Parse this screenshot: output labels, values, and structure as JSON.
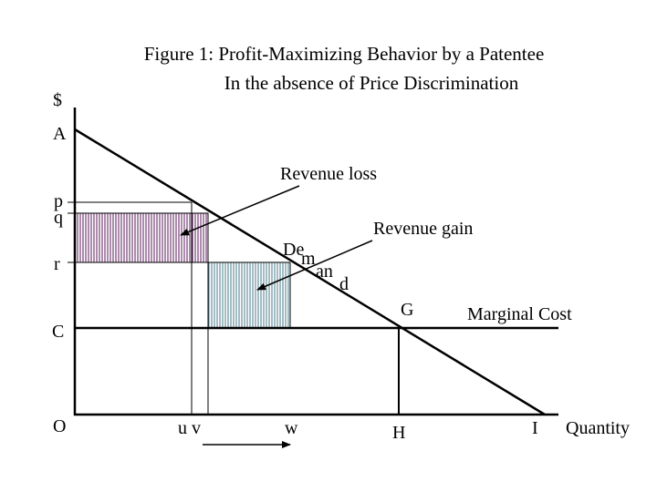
{
  "title": {
    "line1": "Figure 1:  Profit-Maximizing Behavior by a Patentee",
    "line2": "In the absence of Price Discrimination"
  },
  "axis": {
    "y_unit": "$",
    "x_label": "Quantity"
  },
  "y_points": {
    "A": "A",
    "p": "p",
    "q": "q",
    "r": "r",
    "C": "C",
    "O": "O"
  },
  "x_points": {
    "uv": "u v",
    "w": "w",
    "H": "H",
    "I": "I"
  },
  "curves": {
    "demand": {
      "d1": "De",
      "d2": "m",
      "d3": "an",
      "d4": "d"
    },
    "marginal_cost": "Marginal Cost",
    "intersection": "G"
  },
  "annotations": {
    "revenue_loss": "Revenue loss",
    "revenue_gain": "Revenue gain"
  },
  "colors": {
    "revenue_loss_fill": "#5a1a5a",
    "revenue_gain_fill": "#4a7a8a",
    "line": "#000000"
  }
}
